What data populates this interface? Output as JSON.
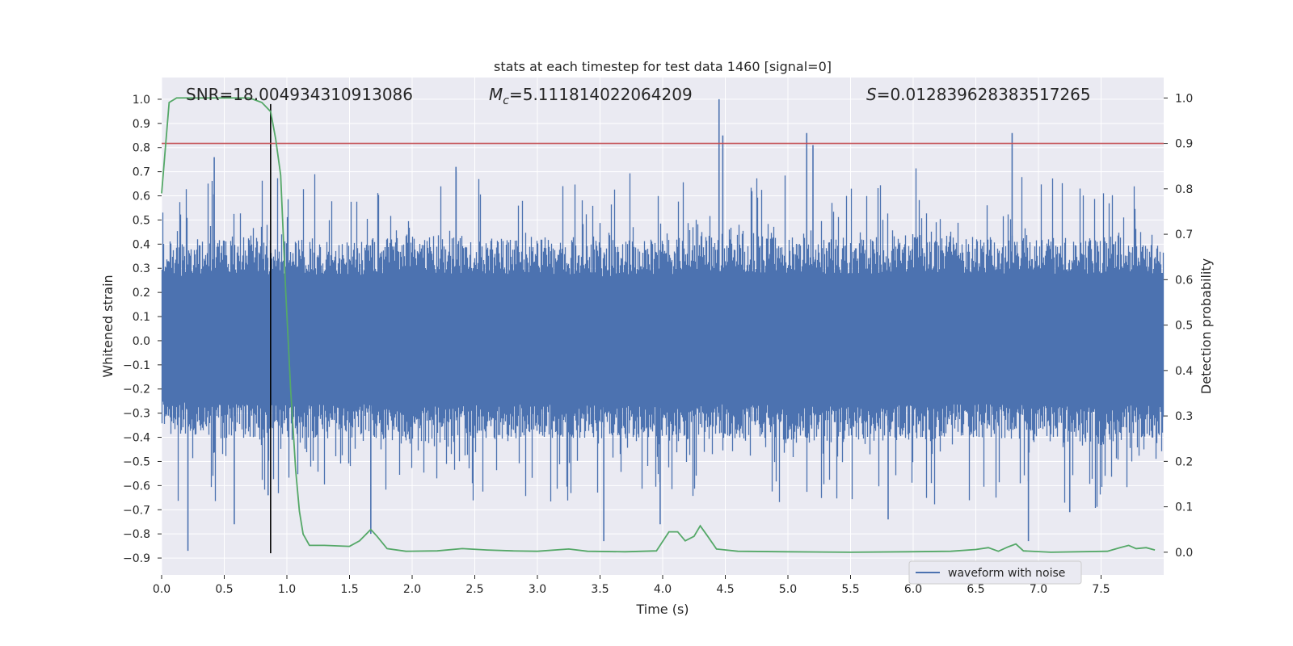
{
  "chart_data": {
    "type": "line",
    "title": "stats at each timestep for test data 1460 [signal=0]",
    "xlabel": "Time (s)",
    "ylabel_left": "Whitened strain",
    "ylabel_right": "Detection probability",
    "xlim": [
      0.0,
      8.0
    ],
    "ylim_left": [
      -0.97,
      1.09
    ],
    "ylim_right": [
      -0.05,
      1.045
    ],
    "x_ticks": [
      "0.0",
      "0.5",
      "1.0",
      "1.5",
      "2.0",
      "2.5",
      "3.0",
      "3.5",
      "4.0",
      "4.5",
      "5.0",
      "5.5",
      "6.0",
      "6.5",
      "7.0",
      "7.5"
    ],
    "y_ticks_left": [
      "-0.9",
      "-0.8",
      "-0.7",
      "-0.6",
      "-0.5",
      "-0.4",
      "-0.3",
      "-0.2",
      "-0.1",
      "0.0",
      "0.1",
      "0.2",
      "0.3",
      "0.4",
      "0.5",
      "0.6",
      "0.7",
      "0.8",
      "0.9",
      "1.0"
    ],
    "y_ticks_right": [
      "0.0",
      "0.1",
      "0.2",
      "0.3",
      "0.4",
      "0.5",
      "0.6",
      "0.7",
      "0.8",
      "0.9",
      "1.0"
    ],
    "grid": true,
    "legend": {
      "placement": "lower-right",
      "entries": [
        {
          "label": "waveform with noise",
          "color": "#4c72b0"
        }
      ]
    },
    "annotations": {
      "snr": "SNR=18.004934310913086",
      "mc_label": "M",
      "mc_sub": "c",
      "mc_value": "=5.111814022064209",
      "s_label": "S",
      "s_value": "=0.012839628383517265"
    },
    "threshold_line": {
      "y_right": 0.9,
      "color": "#c44e52"
    },
    "marker_line": {
      "x": 0.87,
      "color": "#000000"
    },
    "series": [
      {
        "name": "waveform with noise",
        "axis": "left",
        "color": "#4c72b0",
        "envelope_upper": [
          [
            0.0,
            0.4
          ],
          [
            0.5,
            0.43
          ],
          [
            1.0,
            0.42
          ],
          [
            1.5,
            0.41
          ],
          [
            2.0,
            0.44
          ],
          [
            2.5,
            0.42
          ],
          [
            3.0,
            0.43
          ],
          [
            3.5,
            0.41
          ],
          [
            4.0,
            0.42
          ],
          [
            4.5,
            0.44
          ],
          [
            5.0,
            0.43
          ],
          [
            5.5,
            0.42
          ],
          [
            6.0,
            0.44
          ],
          [
            6.5,
            0.43
          ],
          [
            7.0,
            0.42
          ],
          [
            7.5,
            0.43
          ],
          [
            8.0,
            0.42
          ]
        ],
        "envelope_lower": [
          [
            0.0,
            -0.38
          ],
          [
            0.5,
            -0.4
          ],
          [
            1.0,
            -0.41
          ],
          [
            1.5,
            -0.4
          ],
          [
            2.0,
            -0.42
          ],
          [
            2.5,
            -0.41
          ],
          [
            3.0,
            -0.4
          ],
          [
            3.5,
            -0.41
          ],
          [
            4.0,
            -0.42
          ],
          [
            4.5,
            -0.4
          ],
          [
            5.0,
            -0.41
          ],
          [
            5.5,
            -0.42
          ],
          [
            6.0,
            -0.41
          ],
          [
            6.5,
            -0.4
          ],
          [
            7.0,
            -0.41
          ],
          [
            7.5,
            -0.42
          ],
          [
            8.0,
            -0.4
          ]
        ],
        "peaks": [
          [
            0.21,
            -0.87
          ],
          [
            0.42,
            0.76
          ],
          [
            0.58,
            -0.76
          ],
          [
            0.85,
            -0.64
          ],
          [
            1.67,
            -0.8
          ],
          [
            2.35,
            0.72
          ],
          [
            3.53,
            -0.83
          ],
          [
            3.98,
            -0.76
          ],
          [
            4.02,
            -0.12
          ],
          [
            4.45,
            1.0
          ],
          [
            4.48,
            0.85
          ],
          [
            5.15,
            0.86
          ],
          [
            5.2,
            0.81
          ],
          [
            5.8,
            -0.74
          ],
          [
            6.79,
            0.86
          ],
          [
            6.92,
            -0.83
          ],
          [
            7.25,
            -0.71
          ]
        ]
      },
      {
        "name": "",
        "axis": "right",
        "color": "#55a868",
        "points": [
          [
            0.0,
            0.79
          ],
          [
            0.06,
            0.99
          ],
          [
            0.12,
            1.0
          ],
          [
            0.3,
            1.0
          ],
          [
            0.5,
            1.0
          ],
          [
            0.7,
            1.0
          ],
          [
            0.8,
            0.99
          ],
          [
            0.87,
            0.97
          ],
          [
            0.91,
            0.91
          ],
          [
            0.95,
            0.83
          ],
          [
            0.99,
            0.58
          ],
          [
            1.03,
            0.36
          ],
          [
            1.07,
            0.18
          ],
          [
            1.1,
            0.09
          ],
          [
            1.13,
            0.04
          ],
          [
            1.18,
            0.015
          ],
          [
            1.3,
            0.015
          ],
          [
            1.5,
            0.013
          ],
          [
            1.58,
            0.025
          ],
          [
            1.67,
            0.05
          ],
          [
            1.72,
            0.035
          ],
          [
            1.8,
            0.008
          ],
          [
            1.95,
            0.002
          ],
          [
            2.2,
            0.003
          ],
          [
            2.4,
            0.008
          ],
          [
            2.6,
            0.005
          ],
          [
            2.8,
            0.003
          ],
          [
            3.0,
            0.002
          ],
          [
            3.25,
            0.007
          ],
          [
            3.4,
            0.002
          ],
          [
            3.7,
            0.001
          ],
          [
            3.95,
            0.003
          ],
          [
            4.05,
            0.045
          ],
          [
            4.12,
            0.045
          ],
          [
            4.18,
            0.025
          ],
          [
            4.25,
            0.035
          ],
          [
            4.3,
            0.058
          ],
          [
            4.36,
            0.035
          ],
          [
            4.43,
            0.007
          ],
          [
            4.6,
            0.002
          ],
          [
            5.0,
            0.001
          ],
          [
            5.5,
            0.0
          ],
          [
            5.95,
            0.001
          ],
          [
            6.3,
            0.002
          ],
          [
            6.5,
            0.006
          ],
          [
            6.6,
            0.01
          ],
          [
            6.68,
            0.002
          ],
          [
            6.76,
            0.012
          ],
          [
            6.82,
            0.018
          ],
          [
            6.88,
            0.003
          ],
          [
            7.1,
            0.0
          ],
          [
            7.55,
            0.002
          ],
          [
            7.65,
            0.01
          ],
          [
            7.72,
            0.015
          ],
          [
            7.78,
            0.008
          ],
          [
            7.86,
            0.01
          ],
          [
            7.93,
            0.005
          ]
        ]
      }
    ]
  }
}
